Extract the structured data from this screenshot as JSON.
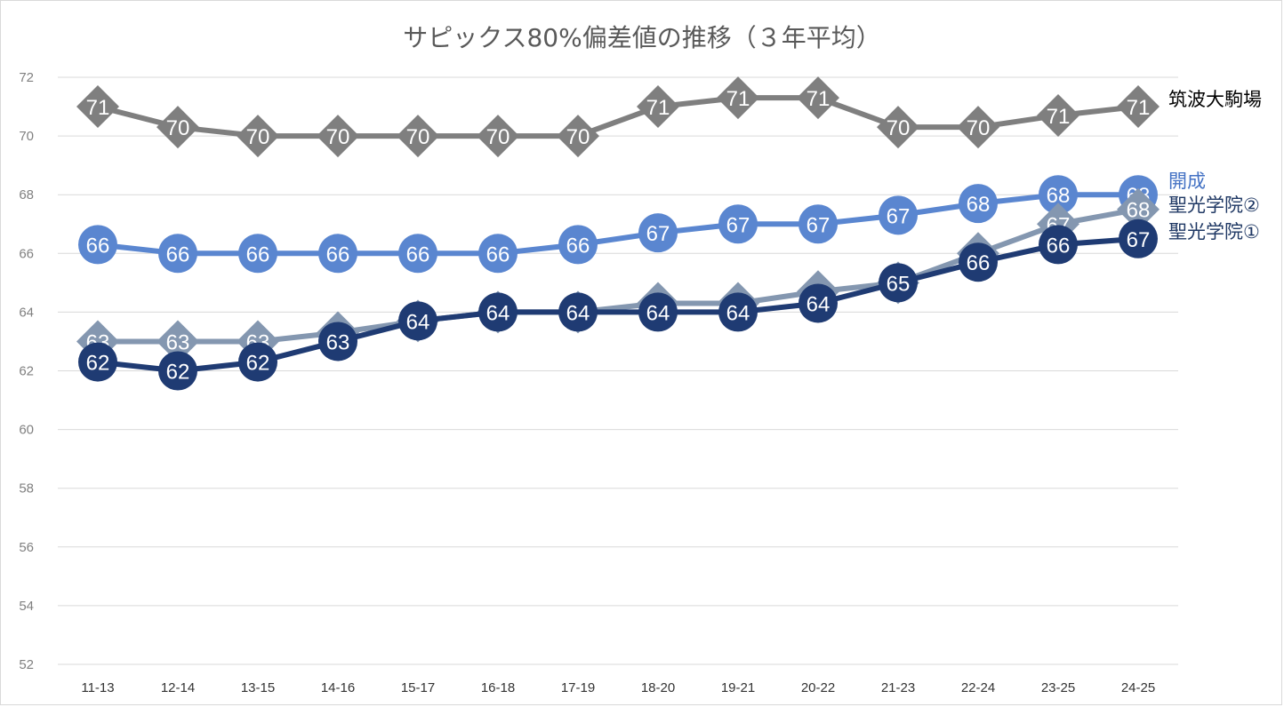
{
  "chart_data": {
    "type": "line",
    "title": "サピックス80%偏差値の推移（３年平均）",
    "categories": [
      "11-13",
      "12-14",
      "13-15",
      "14-16",
      "15-17",
      "16-18",
      "17-19",
      "18-20",
      "19-21",
      "20-22",
      "21-23",
      "22-24",
      "23-25",
      "24-25"
    ],
    "ylim": [
      52,
      72
    ],
    "yticks": [
      52,
      54,
      56,
      58,
      60,
      62,
      64,
      66,
      68,
      70,
      72
    ],
    "grid": true,
    "legend": "right-inline",
    "series": [
      {
        "name": "筑波大駒場",
        "marker": "diamond",
        "color": "#7f7f7f",
        "label_color": "#000000",
        "values": [
          71,
          70.3,
          70,
          70,
          70,
          70,
          70,
          71,
          71.3,
          71.3,
          70.3,
          70.3,
          70.7,
          71
        ],
        "labels": [
          "71",
          "70",
          "70",
          "70",
          "70",
          "70",
          "70",
          "71",
          "71",
          "71",
          "70",
          "70",
          "71",
          "71"
        ]
      },
      {
        "name": "開成",
        "marker": "circle",
        "color": "#5a86d0",
        "label_color": "#4472c4",
        "values": [
          66.3,
          66,
          66,
          66,
          66,
          66,
          66.3,
          66.7,
          67,
          67,
          67.3,
          67.7,
          68,
          68
        ],
        "labels": [
          "66",
          "66",
          "66",
          "66",
          "66",
          "66",
          "66",
          "67",
          "67",
          "67",
          "67",
          "68",
          "68",
          "68"
        ]
      },
      {
        "name": "聖光学院②",
        "marker": "diamond",
        "color": "#8497b0",
        "label_color": "#1f3864",
        "values": [
          63,
          63,
          63,
          63.3,
          63.7,
          64,
          64,
          64.3,
          64.3,
          64.7,
          65,
          66,
          67,
          67.5
        ],
        "labels": [
          "63",
          "63",
          "63",
          "",
          "",
          "",
          "",
          "",
          "",
          "",
          "",
          "",
          "67",
          "68"
        ]
      },
      {
        "name": "聖光学院①",
        "marker": "circle",
        "color": "#1f3b73",
        "label_color": "#1f3864",
        "values": [
          62.3,
          62,
          62.3,
          63,
          63.7,
          64,
          64,
          64,
          64,
          64.3,
          65,
          65.7,
          66.3,
          66.5
        ],
        "labels": [
          "62",
          "62",
          "62",
          "63",
          "64",
          "64",
          "64",
          "64",
          "64",
          "64",
          "65",
          "66",
          "66",
          "67"
        ]
      }
    ]
  }
}
